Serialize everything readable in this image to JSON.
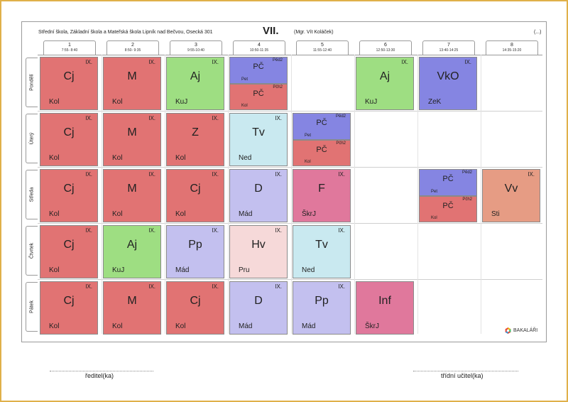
{
  "header": {
    "school": "Střední škola, Základní škola a Mateřská škola Lipník nad Bečvou, Osecká 301",
    "class_title": "VII.",
    "teacher": "(Mgr. Vít Koláček)",
    "more": "(...)"
  },
  "periods": [
    {
      "num": "1",
      "time": "7:55- 8:40"
    },
    {
      "num": "2",
      "time": "8:50- 9:35"
    },
    {
      "num": "3",
      "time": "9:55-10:40"
    },
    {
      "num": "4",
      "time": "10:50-11:35"
    },
    {
      "num": "5",
      "time": "11:55-12:40"
    },
    {
      "num": "6",
      "time": "12:50-13:30"
    },
    {
      "num": "7",
      "time": "13:40-14:25"
    },
    {
      "num": "8",
      "time": "14:35-15:20"
    }
  ],
  "days": [
    "Pondělí",
    "Úterý",
    "Středa",
    "Čtvrtek",
    "Pátek"
  ],
  "lessons": [
    {
      "day": 0,
      "period": 0,
      "subject": "Cj",
      "teacher": "Kol",
      "cls": "IX.",
      "color": "red"
    },
    {
      "day": 0,
      "period": 1,
      "subject": "M",
      "teacher": "Kol",
      "cls": "IX.",
      "color": "red"
    },
    {
      "day": 0,
      "period": 2,
      "subject": "Aj",
      "teacher": "KuJ",
      "cls": "IX.",
      "color": "green"
    },
    {
      "day": 0,
      "period": 3,
      "split": [
        {
          "subject": "PČ",
          "group": "Pěd2",
          "teacher": "Pet",
          "color": "blue"
        },
        {
          "subject": "PČ",
          "group": "Pčh2",
          "teacher": "Kol",
          "color": "red"
        }
      ]
    },
    {
      "day": 0,
      "period": 5,
      "subject": "Aj",
      "teacher": "KuJ",
      "cls": "IX.",
      "color": "green"
    },
    {
      "day": 0,
      "period": 6,
      "subject": "VkO",
      "teacher": "ZeK",
      "cls": "IX.",
      "color": "blue"
    },
    {
      "day": 1,
      "period": 0,
      "subject": "Cj",
      "teacher": "Kol",
      "cls": "IX.",
      "color": "red"
    },
    {
      "day": 1,
      "period": 1,
      "subject": "M",
      "teacher": "Kol",
      "cls": "IX.",
      "color": "red"
    },
    {
      "day": 1,
      "period": 2,
      "subject": "Z",
      "teacher": "Kol",
      "cls": "IX.",
      "color": "red"
    },
    {
      "day": 1,
      "period": 3,
      "subject": "Tv",
      "teacher": "Ned",
      "cls": "IX.",
      "color": "cyan"
    },
    {
      "day": 1,
      "period": 4,
      "split": [
        {
          "subject": "PČ",
          "group": "Pěd2",
          "teacher": "Pet",
          "color": "blue"
        },
        {
          "subject": "PČ",
          "group": "Pčh2",
          "teacher": "Kol",
          "color": "red"
        }
      ]
    },
    {
      "day": 2,
      "period": 0,
      "subject": "Cj",
      "teacher": "Kol",
      "cls": "IX.",
      "color": "red"
    },
    {
      "day": 2,
      "period": 1,
      "subject": "M",
      "teacher": "Kol",
      "cls": "IX.",
      "color": "red"
    },
    {
      "day": 2,
      "period": 2,
      "subject": "Cj",
      "teacher": "Kol",
      "cls": "IX.",
      "color": "red"
    },
    {
      "day": 2,
      "period": 3,
      "subject": "D",
      "teacher": "Mád",
      "cls": "IX.",
      "color": "lav"
    },
    {
      "day": 2,
      "period": 4,
      "subject": "F",
      "teacher": "ŠkrJ",
      "cls": "IX.",
      "color": "pink"
    },
    {
      "day": 2,
      "period": 6,
      "split": [
        {
          "subject": "PČ",
          "group": "Pěd2",
          "teacher": "Pet",
          "color": "blue"
        },
        {
          "subject": "PČ",
          "group": "Pčh2",
          "teacher": "Kol",
          "color": "red"
        }
      ]
    },
    {
      "day": 2,
      "period": 7,
      "subject": "Vv",
      "teacher": "Sti",
      "cls": "IX.",
      "color": "salm"
    },
    {
      "day": 3,
      "period": 0,
      "subject": "Cj",
      "teacher": "Kol",
      "cls": "IX.",
      "color": "red"
    },
    {
      "day": 3,
      "period": 1,
      "subject": "Aj",
      "teacher": "KuJ",
      "cls": "IX.",
      "color": "green"
    },
    {
      "day": 3,
      "period": 2,
      "subject": "Pp",
      "teacher": "Mád",
      "cls": "IX.",
      "color": "lav"
    },
    {
      "day": 3,
      "period": 3,
      "subject": "Hv",
      "teacher": "Pru",
      "cls": "IX.",
      "color": "pale"
    },
    {
      "day": 3,
      "period": 4,
      "subject": "Tv",
      "teacher": "Ned",
      "cls": "IX.",
      "color": "cyan"
    },
    {
      "day": 4,
      "period": 0,
      "subject": "Cj",
      "teacher": "Kol",
      "cls": "IX.",
      "color": "red"
    },
    {
      "day": 4,
      "period": 1,
      "subject": "M",
      "teacher": "Kol",
      "cls": "IX.",
      "color": "red"
    },
    {
      "day": 4,
      "period": 2,
      "subject": "Cj",
      "teacher": "Kol",
      "cls": "IX.",
      "color": "red"
    },
    {
      "day": 4,
      "period": 3,
      "subject": "D",
      "teacher": "Mád",
      "cls": "IX.",
      "color": "lav"
    },
    {
      "day": 4,
      "period": 4,
      "subject": "Pp",
      "teacher": "Mád",
      "cls": "IX.",
      "color": "lav"
    },
    {
      "day": 4,
      "period": 5,
      "subject": "Inf",
      "teacher": "ŠkrJ",
      "cls": "",
      "color": "pink"
    }
  ],
  "logo": {
    "text": "BAKALÁŘI",
    "icon": "bakalari-logo-icon"
  },
  "signatures": {
    "left": "ředitel(ka)",
    "right": "třídní učitel(ka)"
  }
}
